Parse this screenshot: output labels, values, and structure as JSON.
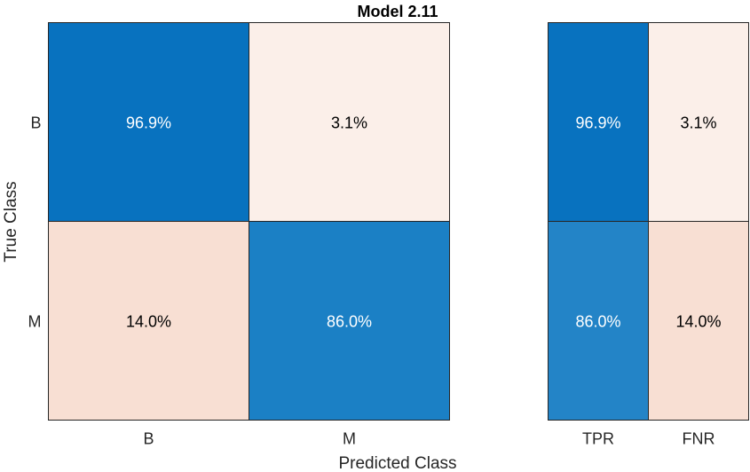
{
  "chart_data": [
    {
      "type": "heatmap",
      "title": "Model 2.11",
      "xlabel": "Predicted Class",
      "ylabel": "True Class",
      "row_labels": [
        "B",
        "M"
      ],
      "col_labels": [
        "B",
        "M"
      ],
      "values": [
        [
          96.9,
          3.1
        ],
        [
          14.0,
          86.0
        ]
      ],
      "cell_labels": [
        [
          "96.9%",
          "3.1%"
        ],
        [
          "14.0%",
          "86.0%"
        ]
      ],
      "colors": [
        [
          "#0872bf",
          "#fbefe9"
        ],
        [
          "#f8dfd3",
          "#1b80c5"
        ]
      ],
      "text_colors": [
        [
          "#ffffff",
          "#000000"
        ],
        [
          "#000000",
          "#ffffff"
        ]
      ]
    },
    {
      "type": "heatmap",
      "row_labels": [
        "B",
        "M"
      ],
      "col_labels": [
        "TPR",
        "FNR"
      ],
      "values": [
        [
          96.9,
          3.1
        ],
        [
          86.0,
          14.0
        ]
      ],
      "cell_labels": [
        [
          "96.9%",
          "3.1%"
        ],
        [
          "86.0%",
          "14.0%"
        ]
      ],
      "colors": [
        [
          "#0872bf",
          "#fbefe9"
        ],
        [
          "#2384c7",
          "#f8dfd3"
        ]
      ],
      "text_colors": [
        [
          "#ffffff",
          "#000000"
        ],
        [
          "#ffffff",
          "#000000"
        ]
      ]
    }
  ]
}
